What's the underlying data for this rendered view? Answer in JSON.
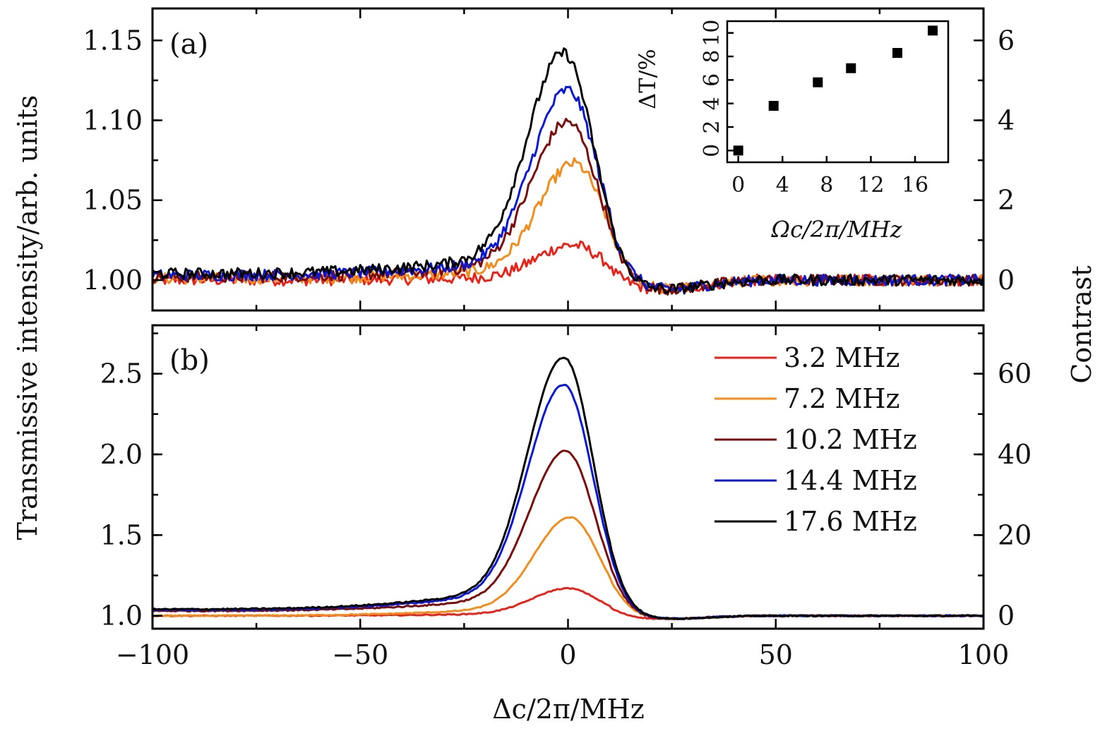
{
  "chart_data": [
    {
      "panel": "(a)",
      "type": "line",
      "ylabel_left": "",
      "ylabel_right": "",
      "xlim": [
        -100,
        100
      ],
      "ylim": [
        0.981,
        1.17
      ],
      "y_ticks": [
        {
          "v": 1.0,
          "label": "1.00"
        },
        {
          "v": 1.05,
          "label": "1.05"
        },
        {
          "v": 1.1,
          "label": "1.10"
        },
        {
          "v": 1.15,
          "label": "1.15"
        }
      ],
      "y2_ticks": [
        {
          "v": 1.0,
          "label": "0"
        },
        {
          "v": 1.05,
          "label": "2"
        },
        {
          "v": 1.1,
          "label": "4"
        },
        {
          "v": 1.15,
          "label": "6"
        }
      ],
      "x_ticks": [
        -100,
        -50,
        0,
        50,
        100
      ],
      "series": [
        {
          "name": "3.2 MHz",
          "color": "#e8231a",
          "peak": 1.022,
          "center": 1.0,
          "offset": 0.0,
          "noise": 0.0035
        },
        {
          "name": "7.2 MHz",
          "color": "#f28c1c",
          "peak": 1.073,
          "center": 1.5,
          "offset": 0.001,
          "noise": 0.0035
        },
        {
          "name": "10.2 MHz",
          "color": "#7a0c0c",
          "peak": 1.099,
          "center": 0.0,
          "offset": 0.002,
          "noise": 0.0035
        },
        {
          "name": "14.4 MHz",
          "color": "#0a18d6",
          "peak": 1.119,
          "center": 0.0,
          "offset": 0.003,
          "noise": 0.0035
        },
        {
          "name": "17.6 MHz",
          "color": "#000000",
          "peak": 1.142,
          "center": -1.0,
          "offset": 0.004,
          "noise": 0.0035
        }
      ],
      "inset": {
        "type": "scatter",
        "xlabel": "Ωc/2π/MHz",
        "ylabel": "ΔT/%",
        "xlim": [
          -1,
          19
        ],
        "ylim": [
          -1,
          11
        ],
        "x_ticks": [
          0,
          4,
          8,
          12,
          16
        ],
        "y_ticks": [
          0,
          2,
          4,
          6,
          8,
          10
        ],
        "x": [
          0,
          3.2,
          7.2,
          10.2,
          14.4,
          17.6
        ],
        "y": [
          0,
          3.8,
          5.8,
          7.0,
          8.3,
          10.2
        ]
      }
    },
    {
      "panel": "(b)",
      "type": "line",
      "xlabel": "Δc/2π/MHz",
      "xlim": [
        -100,
        100
      ],
      "ylim": [
        0.92,
        2.8
      ],
      "y_ticks": [
        {
          "v": 1.0,
          "label": "1.0"
        },
        {
          "v": 1.5,
          "label": "1.5"
        },
        {
          "v": 2.0,
          "label": "2.0"
        },
        {
          "v": 2.5,
          "label": "2.5"
        }
      ],
      "y2_ticks": [
        {
          "v": 1.0,
          "label": "0"
        },
        {
          "v": 1.5,
          "label": "20"
        },
        {
          "v": 2.0,
          "label": "40"
        },
        {
          "v": 2.5,
          "label": "60"
        }
      ],
      "x_ticks": [
        -100,
        -50,
        0,
        50,
        100
      ],
      "x_tick_labels": [
        "−100",
        "−50",
        "0",
        "50",
        "100"
      ],
      "series": [
        {
          "name": "3.2 MHz",
          "color": "#e8231a",
          "peak": 1.17,
          "center": 0.0,
          "offset": 0.0,
          "noise": 0.003
        },
        {
          "name": "7.2 MHz",
          "color": "#f28c1c",
          "peak": 1.61,
          "center": 0.5,
          "offset": 0.0,
          "noise": 0.003
        },
        {
          "name": "10.2 MHz",
          "color": "#7a0c0c",
          "peak": 2.02,
          "center": -0.5,
          "offset": 0.03,
          "noise": 0.004
        },
        {
          "name": "14.4 MHz",
          "color": "#0a18d6",
          "peak": 2.43,
          "center": -1.0,
          "offset": 0.035,
          "noise": 0.004
        },
        {
          "name": "17.6 MHz",
          "color": "#000000",
          "peak": 2.6,
          "center": -1.0,
          "offset": 0.04,
          "noise": 0.004
        }
      ]
    }
  ],
  "labels": {
    "panel_a": "(a)",
    "panel_b": "(b)",
    "ylabel_left": "Transmissive intensity/arb. units",
    "ylabel_right": "Contrast",
    "xlabel": "Δc/2π/MHz",
    "inset_xlabel": "Ωc/2π/MHz",
    "inset_ylabel": "ΔT/%"
  },
  "legend": [
    {
      "label": "3.2 MHz",
      "color": "#e8231a"
    },
    {
      "label": "7.2 MHz",
      "color": "#f28c1c"
    },
    {
      "label": "10.2 MHz",
      "color": "#7a0c0c"
    },
    {
      "label": "14.4 MHz",
      "color": "#0a18d6"
    },
    {
      "label": "17.6 MHz",
      "color": "#000000"
    }
  ]
}
